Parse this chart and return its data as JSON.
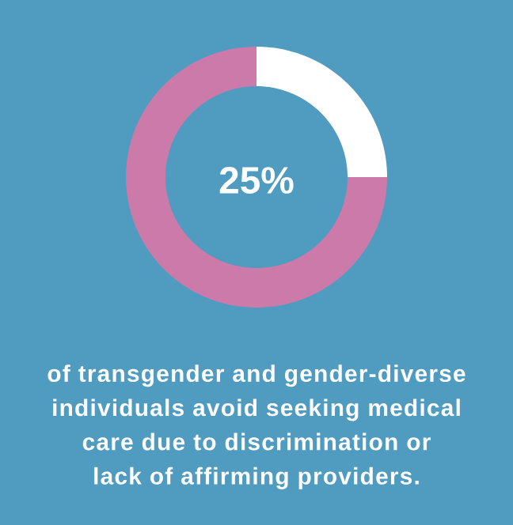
{
  "chart_data": {
    "type": "donut",
    "categories": [
      null,
      null
    ],
    "values": [
      25,
      75
    ],
    "colors": [
      "#ffffff",
      "#cc7aa9"
    ],
    "annotations": [
      "25%",
      "of transgender and gender-diverse individuals avoid seeking medical care due to discrimination or lack of affirming providers."
    ]
  }
}
